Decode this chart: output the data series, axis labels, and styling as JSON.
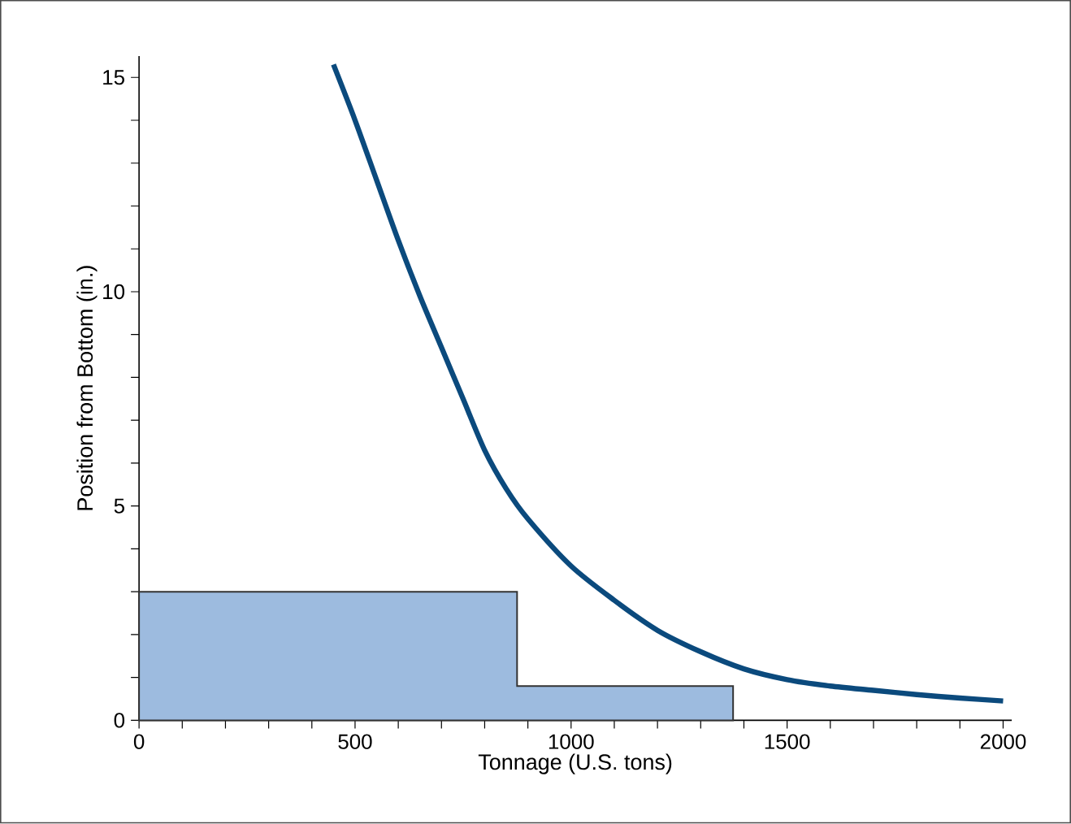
{
  "chart_data": {
    "type": "line",
    "xlabel": "Tonnage (U.S. tons)",
    "ylabel": "Position from Bottom (in.)",
    "xlim": [
      0,
      2020
    ],
    "ylim": [
      0,
      15.5
    ],
    "xticks": [
      0,
      {
        "value": 100,
        "label": null
      },
      {
        "value": 200,
        "label": null
      },
      {
        "value": 300,
        "label": null
      },
      {
        "value": 400,
        "label": null
      },
      500,
      {
        "value": 600,
        "label": null
      },
      {
        "value": 700,
        "label": null
      },
      {
        "value": 800,
        "label": null
      },
      {
        "value": 900,
        "label": null
      },
      1000,
      {
        "value": 1100,
        "label": null
      },
      {
        "value": 1200,
        "label": null
      },
      {
        "value": 1300,
        "label": null
      },
      {
        "value": 1400,
        "label": null
      },
      1500,
      {
        "value": 1600,
        "label": null
      },
      {
        "value": 1700,
        "label": null
      },
      {
        "value": 1800,
        "label": null
      },
      {
        "value": 1900,
        "label": null
      },
      2000
    ],
    "yticks": [
      0,
      {
        "value": 1,
        "label": null
      },
      {
        "value": 2,
        "label": null
      },
      {
        "value": 3,
        "label": null
      },
      {
        "value": 4,
        "label": null
      },
      5,
      {
        "value": 6,
        "label": null
      },
      {
        "value": 7,
        "label": null
      },
      {
        "value": 8,
        "label": null
      },
      {
        "value": 9,
        "label": null
      },
      10,
      {
        "value": 11,
        "label": null
      },
      {
        "value": 12,
        "label": null
      },
      {
        "value": 13,
        "label": null
      },
      {
        "value": 14,
        "label": null
      },
      15
    ],
    "series": [
      {
        "type": "area",
        "color": "#9dbbdf",
        "x": [
          0,
          875,
          875,
          1375
        ],
        "values": [
          3,
          3,
          0.8,
          0.8
        ]
      },
      {
        "color": "#0b4a7d",
        "x": [
          450,
          500,
          550,
          600,
          650,
          700,
          750,
          800,
          850,
          900,
          1000,
          1100,
          1200,
          1300,
          1400,
          1500,
          1600,
          1700,
          1800,
          1900,
          2000
        ],
        "values": [
          15.3,
          14,
          12.6,
          11.2,
          9.9,
          8.7,
          7.5,
          6.3,
          5.4,
          4.7,
          3.6,
          2.8,
          2.1,
          1.6,
          1.2,
          0.95,
          0.8,
          0.7,
          0.6,
          0.52,
          0.45
        ]
      }
    ]
  }
}
